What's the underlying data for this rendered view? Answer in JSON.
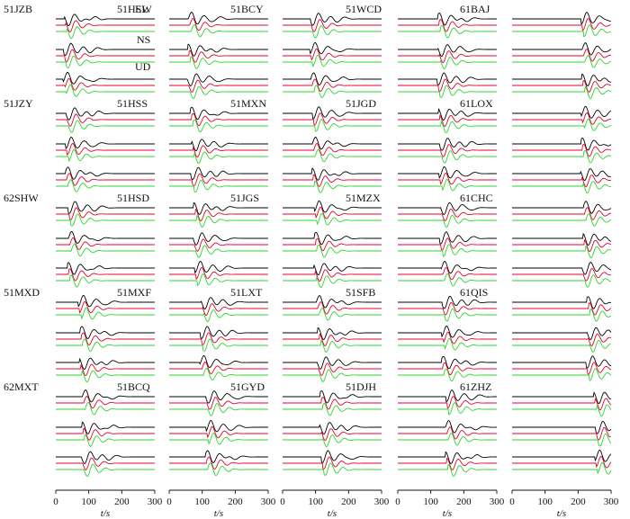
{
  "chart_data": {
    "type": "line",
    "title": "",
    "description_text": "",
    "components": [
      "EW",
      "NS",
      "UD"
    ],
    "trace_types": [
      "observed",
      "synthetic-1",
      "synthetic-2"
    ],
    "colors": {
      "observed": "#000000",
      "synthetic-1": "#e8002a",
      "synthetic-2": "#2bd62b"
    },
    "xlabel": "t/s",
    "xlim": [
      0,
      300
    ],
    "xticks": [
      "0",
      "100",
      "200",
      "300"
    ],
    "columns": [
      [
        "51JZB",
        "51JZY",
        "62SHW",
        "51MXD",
        "62MXT"
      ],
      [
        "51HSL",
        "51HSS",
        "51HSD",
        "51MXF",
        "51BCQ"
      ],
      [
        "51BCY",
        "51MXN",
        "51JGS",
        "51LXT",
        "51GYD"
      ],
      [
        "51WCD",
        "51JGD",
        "51MZX",
        "51SFB",
        "51DJH"
      ],
      [
        "61BAJ",
        "61LOX",
        "61CHC",
        "61QIS",
        "61ZHZ"
      ]
    ],
    "arrival_s": [
      [
        40,
        45,
        50,
        85,
        95
      ],
      [
        70,
        80,
        90,
        110,
        125
      ],
      [
        100,
        105,
        110,
        120,
        130
      ],
      [
        135,
        140,
        145,
        150,
        160
      ],
      [
        225,
        225,
        230,
        240,
        265
      ]
    ]
  }
}
